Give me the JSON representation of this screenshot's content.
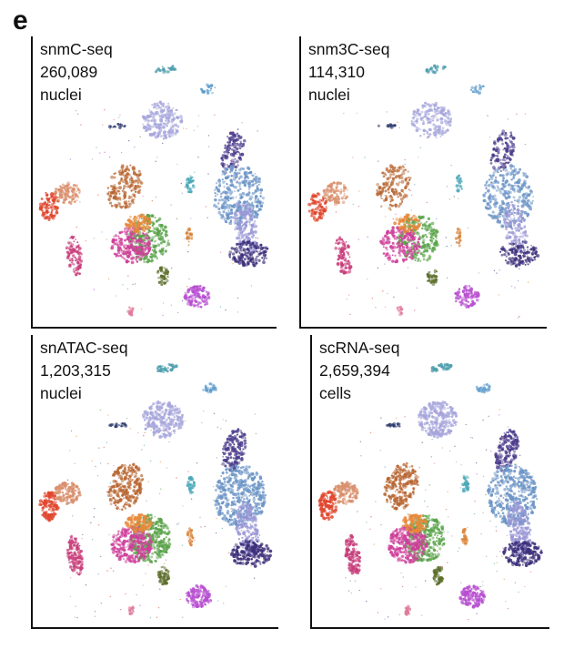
{
  "figure": {
    "panel_letter": "e",
    "panels": [
      {
        "assay": "snmC-seq",
        "count": "260,089",
        "unit": "nuclei",
        "density": 0.8
      },
      {
        "assay": "snm3C-seq",
        "count": "114,310",
        "unit": "nuclei",
        "density": 0.65
      },
      {
        "assay": "snATAC-seq",
        "count": "1,203,315",
        "unit": "nuclei",
        "density": 1.0
      },
      {
        "assay": "scRNA-seq",
        "count": "2,659,394",
        "unit": "cells",
        "density": 1.0
      }
    ],
    "clusters": [
      {
        "name": "top-small-teal",
        "color": "#4f9fae"
      },
      {
        "name": "top-right-blue-dot",
        "color": "#5e9ccc"
      },
      {
        "name": "lavender-upper",
        "color": "#a7a6dc"
      },
      {
        "name": "left-dark-cluster",
        "color": "#2d3a6e"
      },
      {
        "name": "dark-violet-top",
        "color": "#4b3c8c"
      },
      {
        "name": "steelblue-big",
        "color": "#6b94c6"
      },
      {
        "name": "lavender-tail",
        "color": "#9a97d6"
      },
      {
        "name": "bottom-right-violet",
        "color": "#3d2f7a"
      },
      {
        "name": "orange-brown",
        "color": "#b86530"
      },
      {
        "name": "salmon",
        "color": "#d98f6c"
      },
      {
        "name": "red",
        "color": "#e0452c"
      },
      {
        "name": "pink-magenta",
        "color": "#c83c7a"
      },
      {
        "name": "center-green",
        "color": "#5aa34a"
      },
      {
        "name": "center-magenta",
        "color": "#cf3f9a"
      },
      {
        "name": "center-orange",
        "color": "#e7893b"
      },
      {
        "name": "bottom-purple",
        "color": "#b74fd0"
      },
      {
        "name": "olive-green",
        "color": "#5d6e2b"
      },
      {
        "name": "small-cyan",
        "color": "#4aa9b8"
      },
      {
        "name": "small-pink",
        "color": "#e07a9a"
      },
      {
        "name": "small-orange",
        "color": "#d9853a"
      }
    ]
  }
}
